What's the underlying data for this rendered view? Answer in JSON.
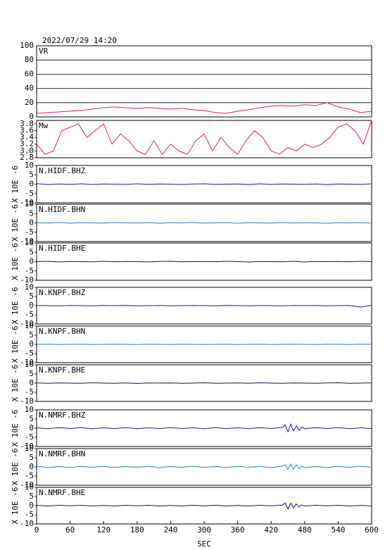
{
  "chart_data": [
    {
      "type": "line",
      "title": "2022/07/29 14:20",
      "label": "VR",
      "color": "#e0204a",
      "grid": true,
      "xlim": [
        0,
        600
      ],
      "ylim": [
        0,
        100
      ],
      "yticks": [
        0,
        20,
        40,
        60,
        80,
        100
      ],
      "x": [
        0,
        20,
        40,
        60,
        80,
        100,
        120,
        140,
        160,
        180,
        200,
        220,
        240,
        260,
        280,
        300,
        320,
        340,
        360,
        380,
        400,
        420,
        440,
        460,
        480,
        500,
        520,
        540,
        560,
        580,
        600
      ],
      "values": [
        5,
        6,
        7,
        8,
        9,
        11,
        13,
        14,
        13,
        12,
        13,
        12,
        11,
        12,
        10,
        9,
        6,
        5,
        8,
        10,
        13,
        15,
        16,
        15,
        17,
        16,
        20,
        14,
        11,
        6,
        8
      ]
    },
    {
      "type": "line",
      "label": "Mw",
      "color": "#e0204a",
      "grid": false,
      "xlim": [
        0,
        600
      ],
      "ylim": [
        2.8,
        3.9
      ],
      "yticks": [
        2.8,
        {
          "value": 3,
          "label": "3.0"
        },
        3.2,
        3.4,
        3.6,
        3.8
      ],
      "x": [
        0,
        15,
        30,
        45,
        60,
        75,
        90,
        105,
        120,
        135,
        150,
        165,
        180,
        195,
        210,
        225,
        240,
        255,
        270,
        285,
        300,
        315,
        330,
        345,
        360,
        375,
        390,
        405,
        420,
        435,
        450,
        465,
        480,
        495,
        510,
        525,
        540,
        555,
        570,
        585,
        600
      ],
      "values": [
        3.2,
        2.9,
        3.0,
        3.6,
        3.7,
        3.8,
        3.4,
        3.6,
        3.8,
        3.2,
        3.5,
        3.3,
        3.0,
        2.9,
        3.3,
        2.9,
        3.2,
        3.0,
        2.9,
        3.3,
        3.5,
        3.0,
        3.4,
        3.1,
        2.9,
        3.3,
        3.6,
        3.4,
        3.0,
        2.9,
        3.1,
        3.0,
        3.2,
        3.1,
        3.2,
        3.4,
        3.7,
        3.8,
        3.6,
        3.2,
        3.9
      ]
    },
    {
      "type": "line",
      "label": "N.HIDF.BHZ",
      "ylabel": "X 10E -6",
      "color": "#1a1aa0",
      "xlim": [
        0,
        600
      ],
      "ylim": [
        -10,
        10
      ],
      "yticks": [
        -10,
        -5,
        0,
        5,
        10
      ],
      "x": [
        0,
        20,
        40,
        60,
        80,
        100,
        120,
        140,
        160,
        180,
        200,
        220,
        240,
        260,
        280,
        300,
        320,
        340,
        360,
        380,
        400,
        420,
        440,
        460,
        480,
        500,
        520,
        540,
        560,
        580,
        600
      ],
      "values": [
        0.3,
        -0.2,
        0.1,
        -0.1,
        0.2,
        -0.2,
        0.1,
        0,
        -0.1,
        0.2,
        -0.1,
        0.1,
        0,
        -0.2,
        0.1,
        0.2,
        -0.1,
        0,
        0.1,
        -0.2,
        0.2,
        -0.1,
        0.1,
        0,
        -0.1,
        0.1,
        -0.2,
        0.1,
        0,
        -0.1,
        0.2
      ]
    },
    {
      "type": "line",
      "label": "N.HIDF.BHN",
      "ylabel": "X 10E -6",
      "color": "#2080e0",
      "xlim": [
        0,
        600
      ],
      "ylim": [
        -10,
        10
      ],
      "yticks": [
        -10,
        -5,
        0,
        5,
        10
      ],
      "x": [
        0,
        20,
        40,
        60,
        80,
        100,
        120,
        140,
        160,
        180,
        200,
        220,
        240,
        260,
        280,
        300,
        320,
        340,
        360,
        380,
        400,
        420,
        440,
        460,
        480,
        500,
        520,
        540,
        560,
        580,
        600
      ],
      "values": [
        0.1,
        -0.1,
        0.2,
        -0.2,
        0.1,
        0,
        -0.1,
        0.2,
        0,
        -0.1,
        0.1,
        -0.2,
        0.1,
        0,
        0.2,
        -0.1,
        0,
        0.1,
        -0.2,
        0.1,
        0,
        -0.1,
        0.2,
        -0.1,
        0.1,
        0,
        -0.2,
        0.1,
        0,
        0.1,
        -0.1
      ]
    },
    {
      "type": "line",
      "label": "N.HIDF.BHE",
      "ylabel": "X 10E -6",
      "color": "#101070",
      "xlim": [
        0,
        600
      ],
      "ylim": [
        -10,
        10
      ],
      "yticks": [
        -10,
        -5,
        0,
        5,
        10
      ],
      "x": [
        0,
        20,
        40,
        60,
        80,
        100,
        120,
        140,
        160,
        180,
        200,
        220,
        240,
        260,
        280,
        300,
        320,
        340,
        360,
        380,
        400,
        420,
        440,
        460,
        480,
        500,
        520,
        540,
        560,
        580,
        600
      ],
      "values": [
        -0.1,
        0.2,
        -0.2,
        0.1,
        0,
        -0.1,
        0.2,
        -0.1,
        0.1,
        0,
        -0.2,
        0.1,
        0.2,
        -0.1,
        0,
        0.1,
        -0.1,
        0.2,
        0,
        -0.2,
        0.1,
        0,
        -0.1,
        0.2,
        -0.2,
        0.1,
        0,
        0.1,
        -0.1,
        0.2,
        0
      ]
    },
    {
      "type": "line",
      "label": "N.KNPF.BHZ",
      "ylabel": "X 10E -6",
      "color": "#1a1aa0",
      "xlim": [
        0,
        600
      ],
      "ylim": [
        -10,
        10
      ],
      "yticks": [
        -10,
        -5,
        0,
        5,
        10
      ],
      "x": [
        0,
        20,
        40,
        60,
        80,
        100,
        120,
        140,
        160,
        180,
        200,
        220,
        240,
        260,
        280,
        300,
        320,
        340,
        360,
        380,
        400,
        420,
        440,
        460,
        480,
        500,
        520,
        540,
        560,
        580,
        600
      ],
      "values": [
        0.1,
        0,
        -0.1,
        0.1,
        0,
        -0.1,
        0.1,
        0,
        0.1,
        -0.1,
        0,
        0.1,
        -0.1,
        0,
        0.1,
        0,
        -0.1,
        0.1,
        0,
        -0.1,
        0.1,
        0,
        -0.1,
        0.1,
        0,
        0.1,
        -0.1,
        0,
        0.1,
        -0.8,
        0.2
      ]
    },
    {
      "type": "line",
      "label": "N.KNPF.BHN",
      "ylabel": "X 10E -6",
      "color": "#2080e0",
      "xlim": [
        0,
        600
      ],
      "ylim": [
        -10,
        10
      ],
      "yticks": [
        -10,
        -5,
        0,
        5,
        10
      ],
      "x": [
        0,
        20,
        40,
        60,
        80,
        100,
        120,
        140,
        160,
        180,
        200,
        220,
        240,
        260,
        280,
        300,
        320,
        340,
        360,
        380,
        400,
        420,
        440,
        460,
        480,
        500,
        520,
        540,
        560,
        580,
        600
      ],
      "values": [
        0,
        0.1,
        -0.1,
        0,
        0.1,
        -0.1,
        0,
        0.1,
        0,
        -0.1,
        0.1,
        0,
        -0.1,
        0.1,
        0,
        -0.1,
        0,
        0.1,
        -0.1,
        0,
        0.1,
        -0.1,
        0,
        0.1,
        0,
        -0.1,
        0.1,
        0,
        -0.1,
        0.1,
        0
      ]
    },
    {
      "type": "line",
      "label": "N.KNPF.BHE",
      "ylabel": "X 10E -6",
      "color": "#101070",
      "xlim": [
        0,
        600
      ],
      "ylim": [
        -10,
        10
      ],
      "yticks": [
        -10,
        -5,
        0,
        5,
        10
      ],
      "x": [
        0,
        20,
        40,
        60,
        80,
        100,
        120,
        140,
        160,
        180,
        200,
        220,
        240,
        260,
        280,
        300,
        320,
        340,
        360,
        380,
        400,
        420,
        440,
        460,
        480,
        500,
        520,
        540,
        560,
        580,
        600
      ],
      "values": [
        0.1,
        -0.1,
        0.1,
        0,
        -0.1,
        0.2,
        0,
        -0.1,
        0.1,
        -0.2,
        0.1,
        0,
        0.1,
        -0.1,
        0,
        0.2,
        -0.1,
        0,
        0.1,
        -0.1,
        0.2,
        0,
        -0.1,
        0.1,
        0,
        -0.1,
        0.1,
        0.2,
        -0.1,
        0,
        0.1
      ]
    },
    {
      "type": "line",
      "label": "N.NMRF.BHZ",
      "ylabel": "X 10E -6",
      "color": "#1a1aa0",
      "xlim": [
        0,
        600
      ],
      "ylim": [
        -10,
        10
      ],
      "yticks": [
        -10,
        -5,
        0,
        5,
        10
      ],
      "x": [
        0,
        20,
        40,
        60,
        80,
        100,
        120,
        140,
        160,
        180,
        200,
        220,
        240,
        260,
        280,
        300,
        320,
        340,
        360,
        380,
        400,
        420,
        440,
        445,
        450,
        455,
        460,
        465,
        470,
        475,
        480,
        500,
        520,
        540,
        560,
        580,
        600
      ],
      "values": [
        0.2,
        -0.3,
        0.3,
        -0.2,
        0.3,
        -0.3,
        0.2,
        -0.2,
        0.3,
        -0.3,
        0.2,
        -0.2,
        0.3,
        -0.2,
        0.2,
        -0.3,
        0.3,
        -0.2,
        0.2,
        -0.3,
        0.3,
        -0.2,
        0.4,
        1.8,
        -2,
        2.2,
        -1.6,
        1.3,
        -1.1,
        0.6,
        -0.3,
        0.3,
        -0.2,
        0.3,
        -0.3,
        0.2,
        -0.2
      ]
    },
    {
      "type": "line",
      "label": "N.NMRF.BHN",
      "ylabel": "X 10E -6",
      "color": "#2080e0",
      "xlim": [
        0,
        600
      ],
      "ylim": [
        -10,
        10
      ],
      "yticks": [
        -10,
        -5,
        0,
        5,
        10
      ],
      "x": [
        0,
        20,
        40,
        60,
        80,
        100,
        120,
        140,
        160,
        180,
        200,
        220,
        240,
        260,
        280,
        300,
        320,
        340,
        360,
        380,
        400,
        420,
        440,
        445,
        450,
        455,
        460,
        465,
        470,
        475,
        480,
        500,
        520,
        540,
        560,
        580,
        600
      ],
      "values": [
        0.3,
        -0.3,
        0.2,
        -0.3,
        0.3,
        -0.2,
        0.3,
        -0.3,
        0.2,
        -0.2,
        0.3,
        -0.3,
        0.2,
        -0.2,
        0.3,
        -0.3,
        0.2,
        -0.3,
        0.3,
        -0.2,
        0.3,
        -0.3,
        0.3,
        1.2,
        -1.5,
        1.6,
        -1.4,
        1.2,
        -1,
        0.5,
        -0.3,
        0.2,
        -0.3,
        0.3,
        -0.2,
        0.3,
        -0.2
      ]
    },
    {
      "type": "line",
      "label": "N.NMRF.BHE",
      "ylabel": "X 10E -6",
      "color": "#101070",
      "xlim": [
        0,
        600
      ],
      "ylim": [
        -10,
        10
      ],
      "yticks": [
        -10,
        -5,
        0,
        5,
        10
      ],
      "xticks": [
        0,
        60,
        120,
        180,
        240,
        300,
        360,
        420,
        480,
        540,
        600
      ],
      "xlabel": "SEC",
      "x": [
        0,
        20,
        40,
        60,
        80,
        100,
        120,
        140,
        160,
        180,
        200,
        220,
        240,
        260,
        280,
        300,
        320,
        340,
        360,
        380,
        400,
        420,
        440,
        445,
        450,
        455,
        460,
        465,
        470,
        475,
        480,
        500,
        520,
        540,
        560,
        580,
        600
      ],
      "values": [
        0.2,
        -0.2,
        0.2,
        -0.1,
        0.2,
        -0.2,
        0.1,
        -0.2,
        0.2,
        -0.1,
        0.2,
        -0.2,
        0.1,
        -0.2,
        0.2,
        -0.1,
        0.2,
        -0.2,
        0.1,
        -0.2,
        0.2,
        -0.1,
        0.3,
        1.5,
        -1.8,
        1.4,
        -1.2,
        0.9,
        -0.7,
        0.4,
        -0.2,
        0.2,
        -0.1,
        0.2,
        -0.2,
        0.1,
        -0.2
      ]
    }
  ]
}
